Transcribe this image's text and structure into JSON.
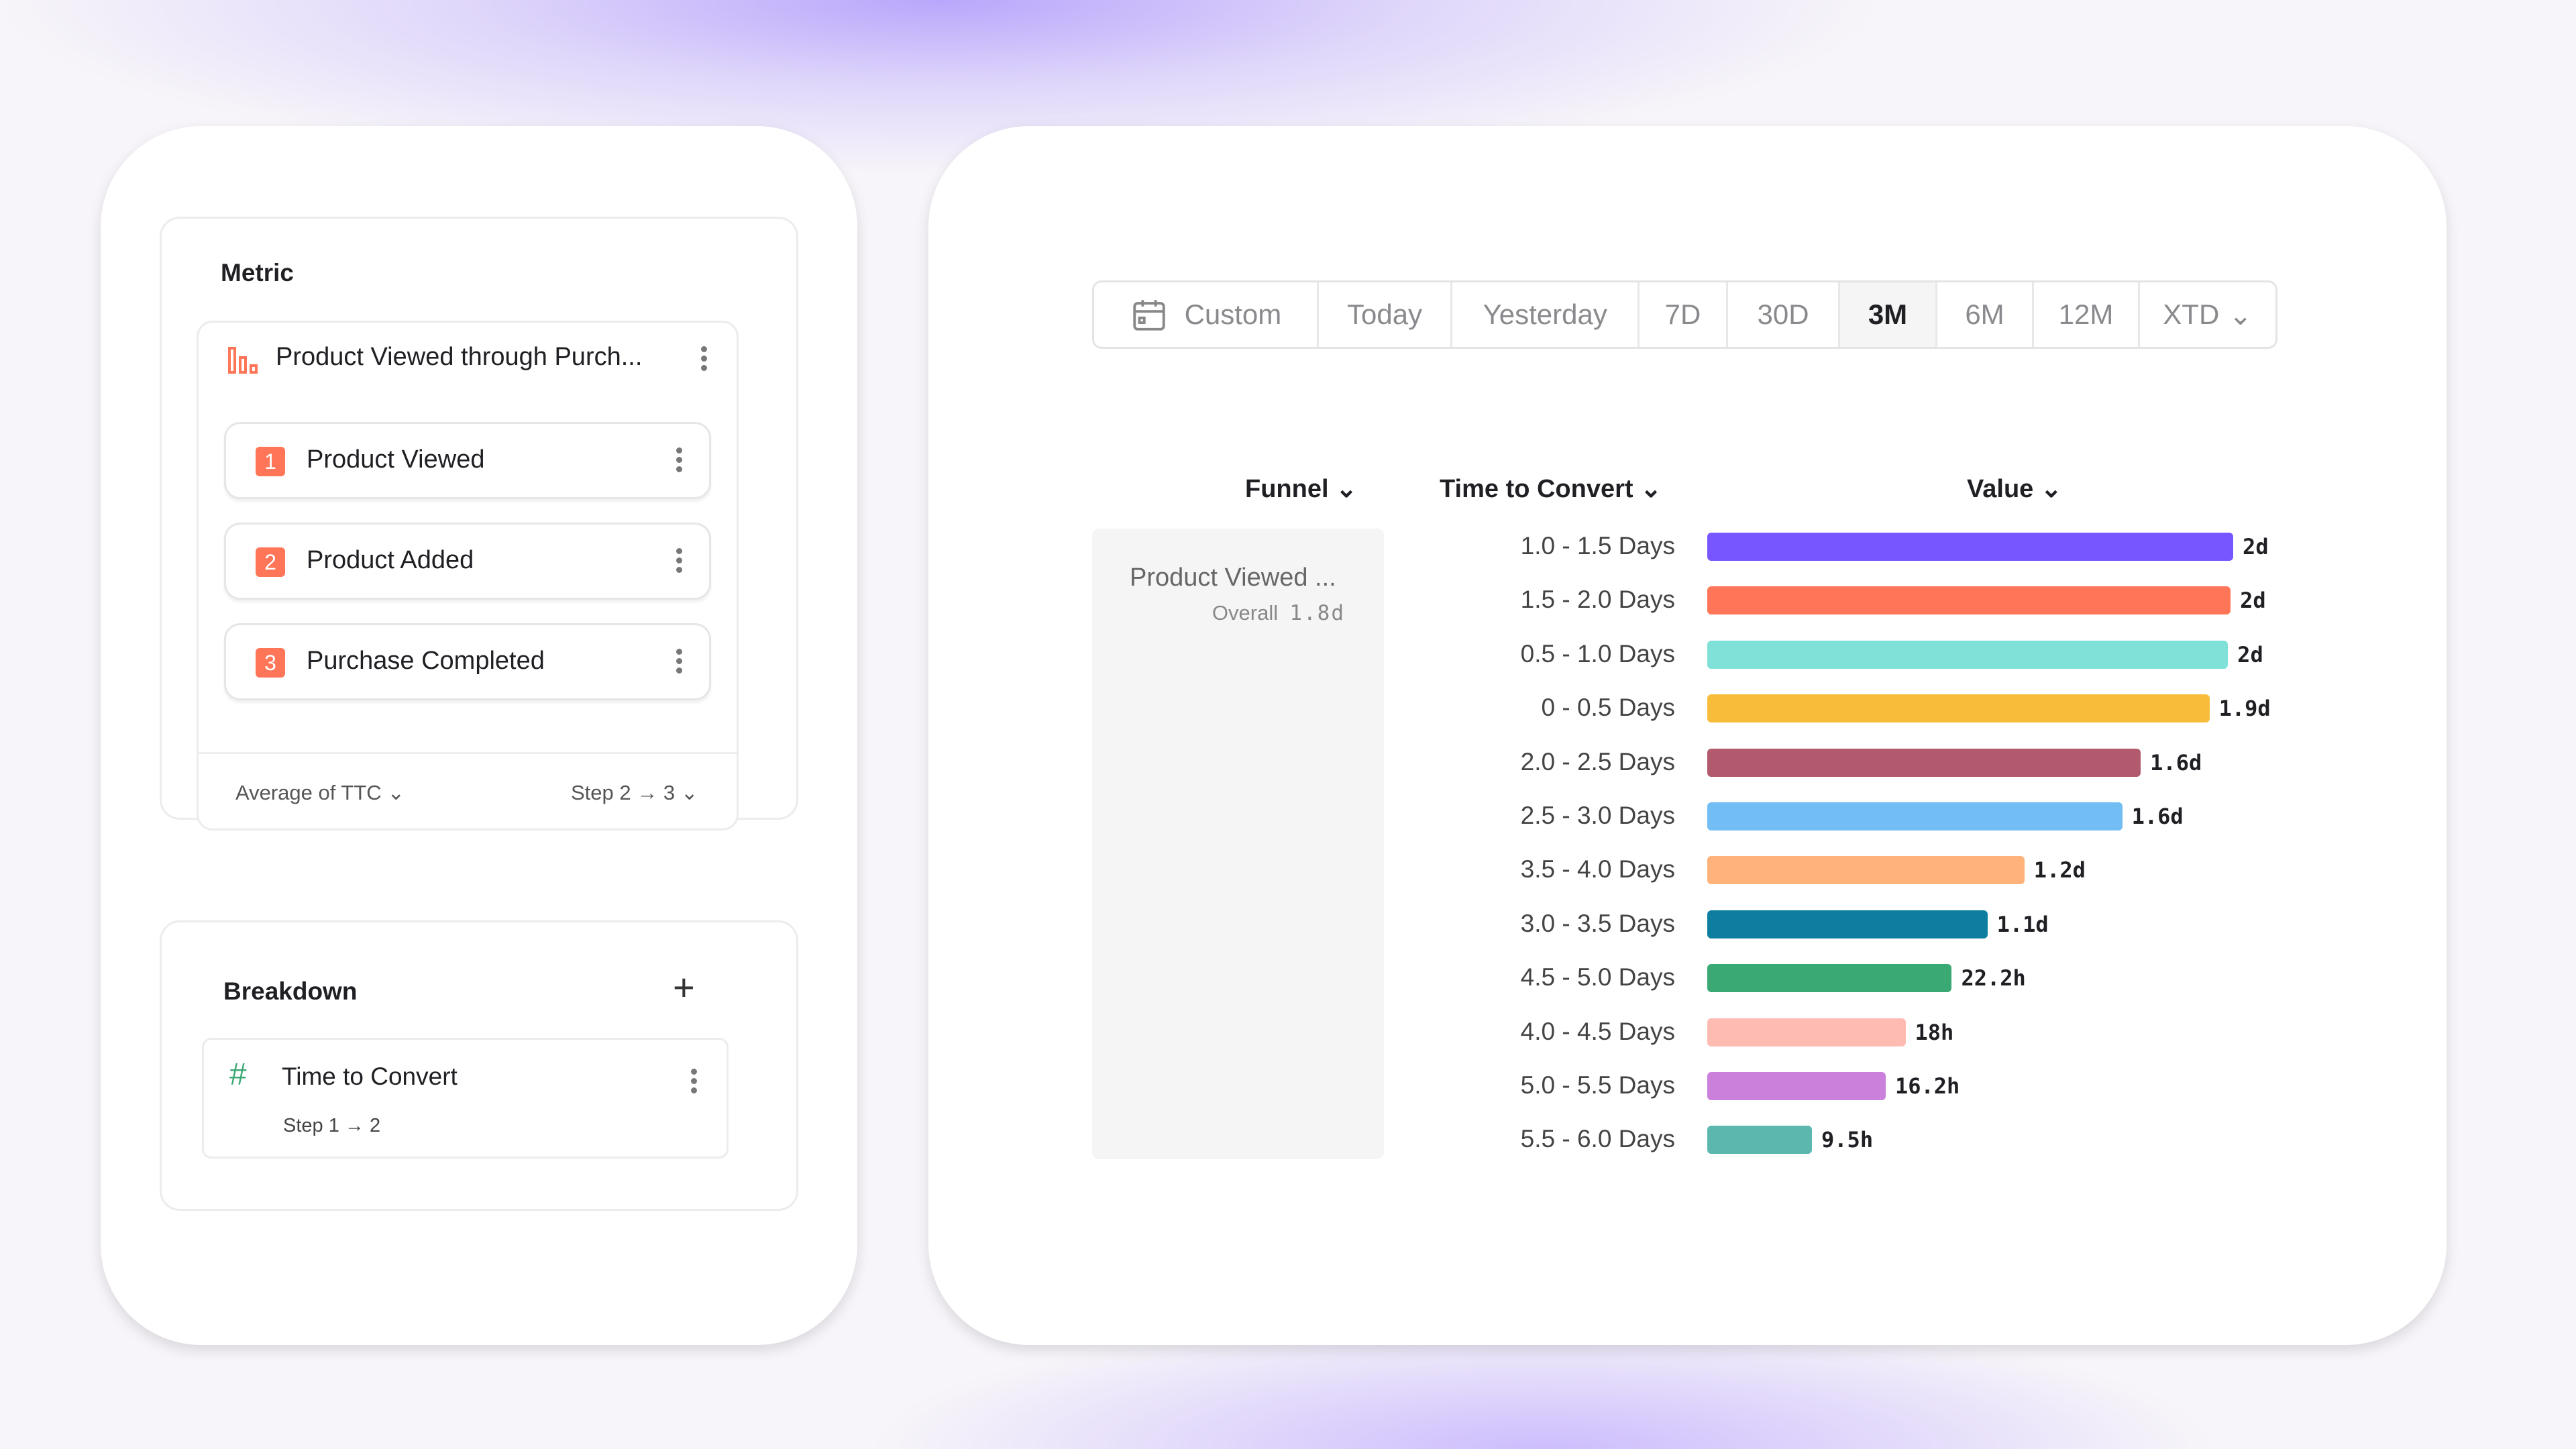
{
  "metric": {
    "title": "Metric",
    "funnel_name": "Product Viewed through Purch...",
    "steps": [
      {
        "n": "1",
        "label": "Product Viewed"
      },
      {
        "n": "2",
        "label": "Product Added"
      },
      {
        "n": "3",
        "label": "Purchase Completed"
      }
    ],
    "aggregation": "Average of TTC",
    "step_range": "Step 2 → 3"
  },
  "breakdown": {
    "title": "Breakdown",
    "item": "Time to Convert",
    "item_sub": "Step 1 → 2"
  },
  "date_range": {
    "options": [
      "Custom",
      "Today",
      "Yesterday",
      "7D",
      "30D",
      "3M",
      "6M",
      "12M",
      "XTD"
    ],
    "selected": "3M"
  },
  "table": {
    "headers": {
      "funnel": "Funnel",
      "ttc": "Time to Convert",
      "value": "Value"
    },
    "funnel_name": "Product Viewed ...",
    "overall_label": "Overall",
    "overall_value": "1.8d"
  },
  "chart_data": {
    "type": "bar",
    "orientation": "horizontal",
    "categories": [
      "1.0 - 1.5 Days",
      "1.5 - 2.0 Days",
      "0.5 - 1.0 Days",
      "0 - 0.5 Days",
      "2.0 - 2.5 Days",
      "2.5 - 3.0 Days",
      "3.5 - 4.0 Days",
      "3.0 - 3.5 Days",
      "4.5 - 5.0 Days",
      "4.0 - 4.5 Days",
      "5.0 - 5.5 Days",
      "5.5 - 6.0 Days"
    ],
    "values_days": [
      1.99,
      1.98,
      1.97,
      1.9,
      1.64,
      1.57,
      1.2,
      1.06,
      0.925,
      0.75,
      0.675,
      0.396
    ],
    "labels": [
      "2d",
      "2d",
      "2d",
      "1.9d",
      "1.6d",
      "1.6d",
      "1.2d",
      "1.1d",
      "22.2h",
      "18h",
      "16.2h",
      "9.5h"
    ],
    "colors": [
      "#7856ff",
      "#ff7557",
      "#80e1d9",
      "#f8bc3b",
      "#b2596e",
      "#72bef4",
      "#ffb27a",
      "#0d7ea0",
      "#3ba974",
      "#febbb2",
      "#cb80dc",
      "#5cb7af"
    ]
  }
}
